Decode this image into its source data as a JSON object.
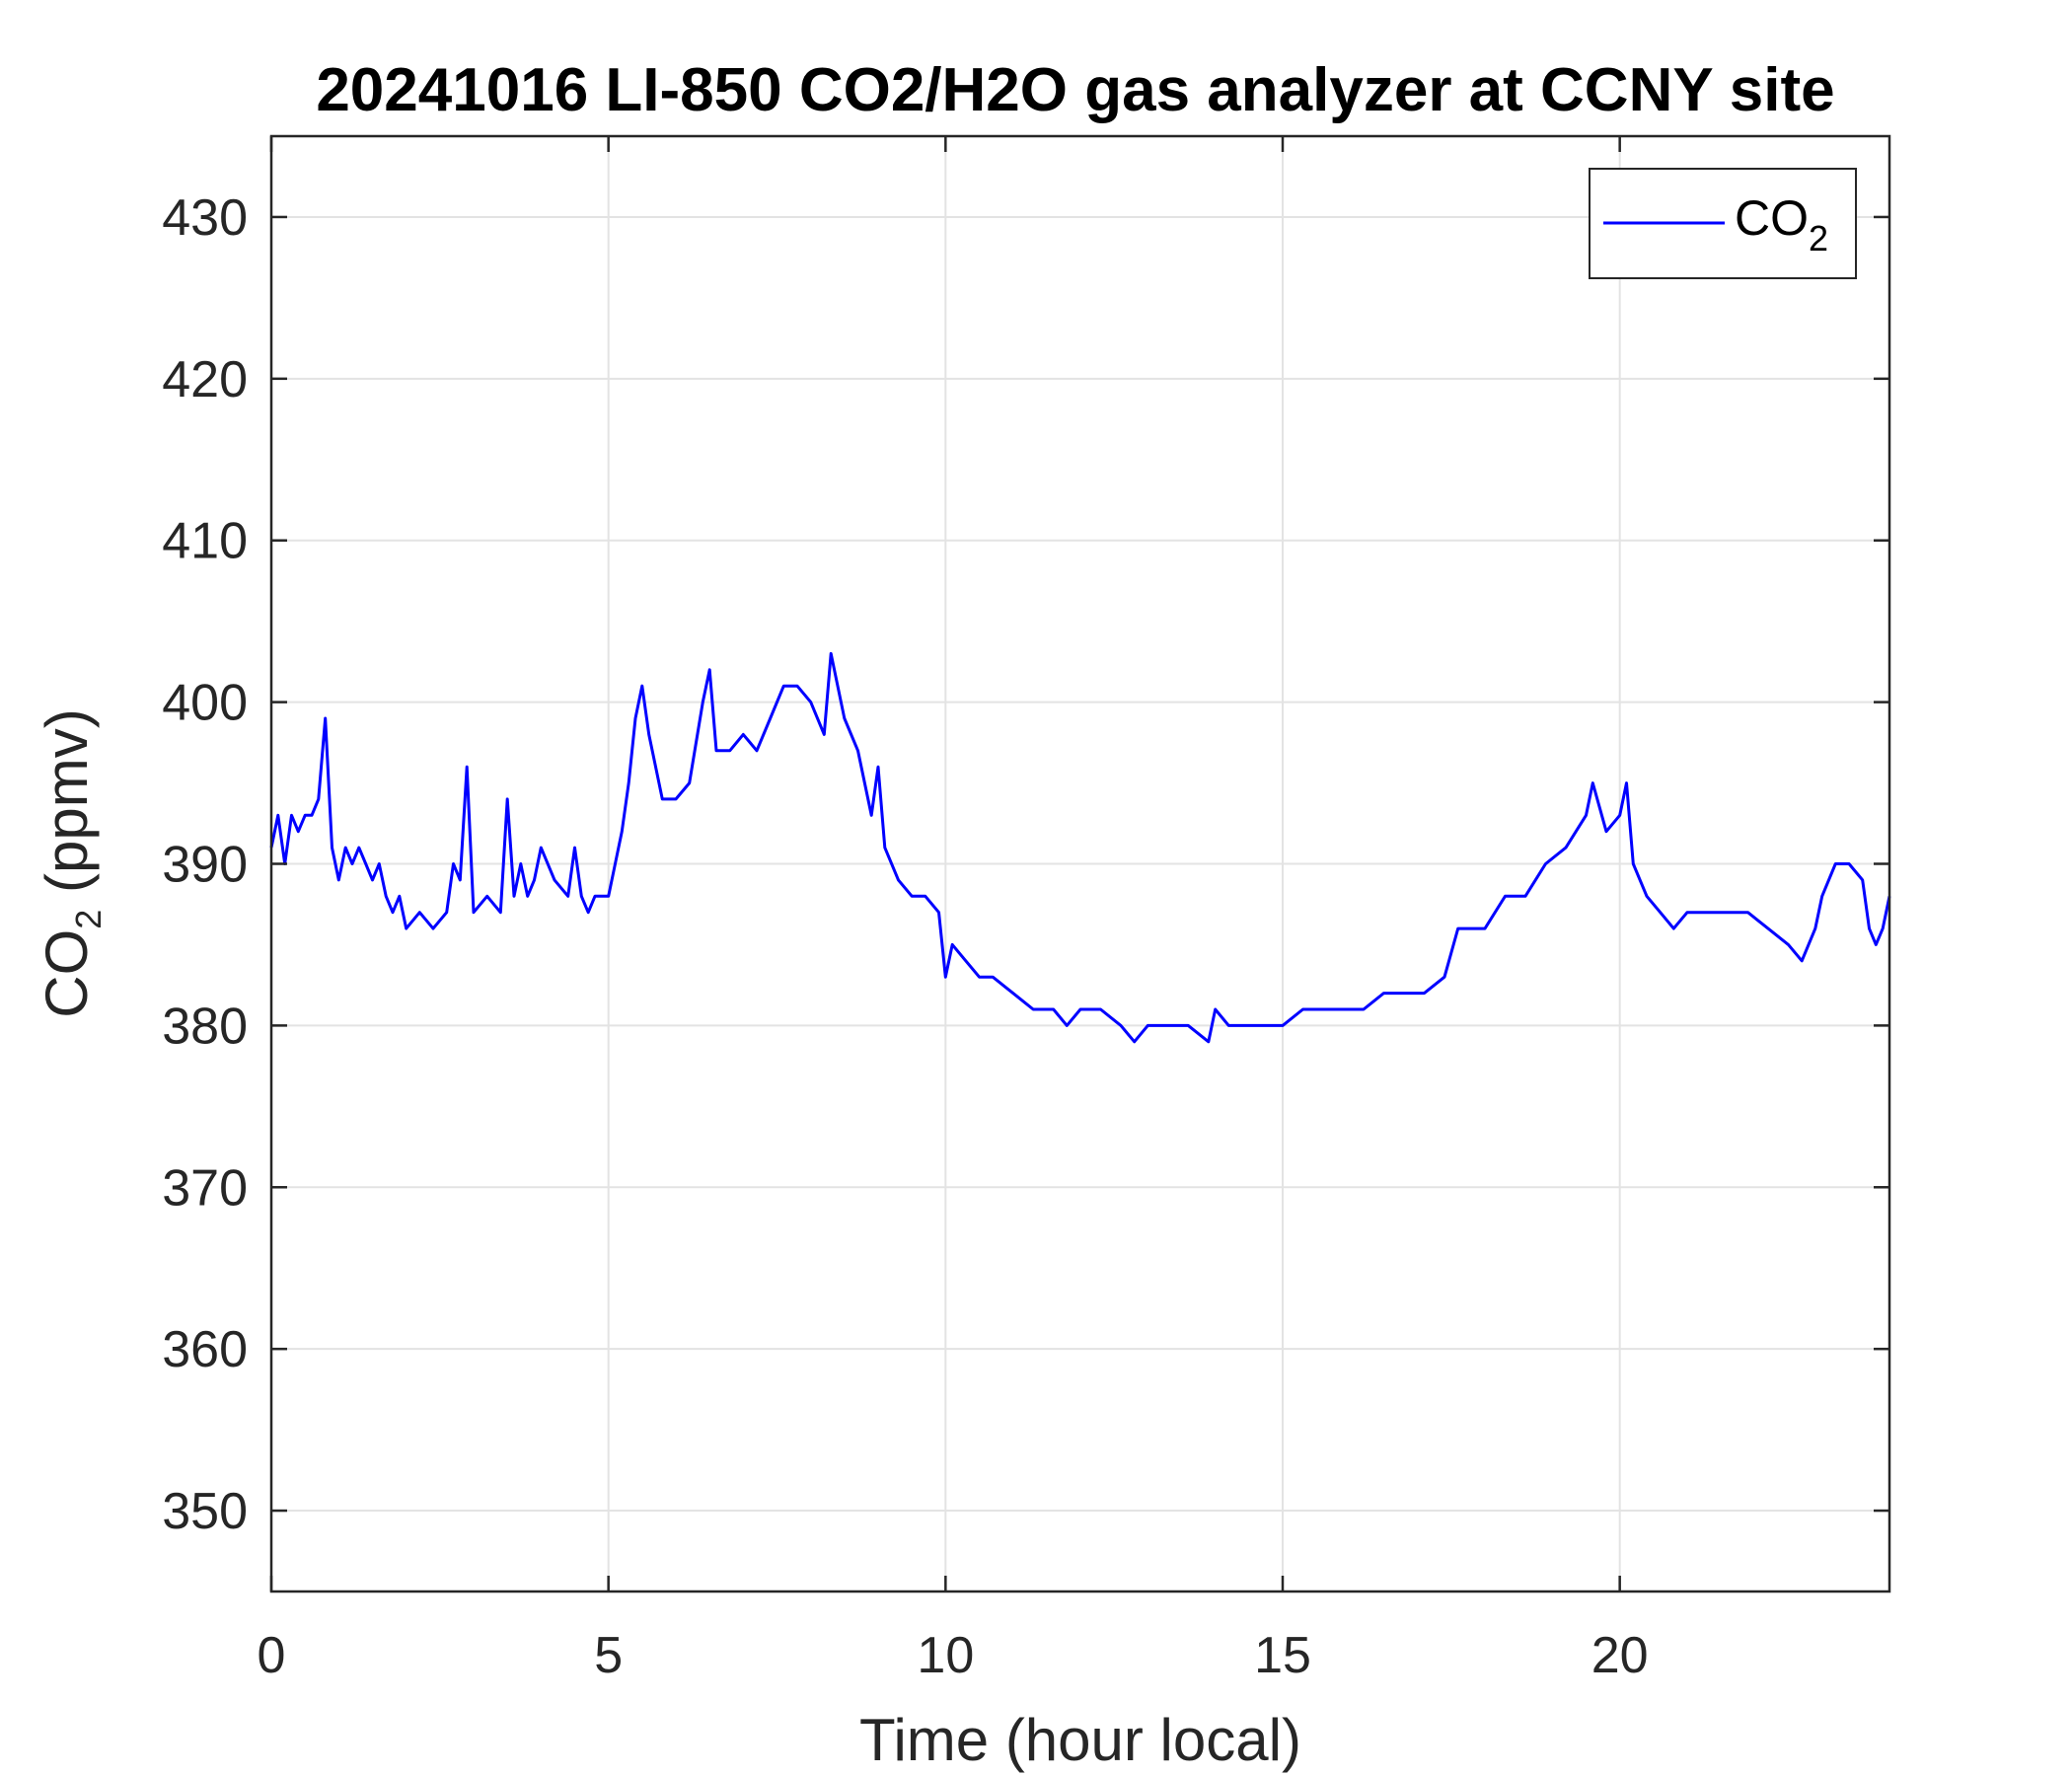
{
  "chart_data": {
    "type": "line",
    "title": "20241016 LI-850 CO2/H2O gas analyzer at CCNY site",
    "xlabel": "Time (hour local)",
    "ylabel": {
      "main": "CO",
      "sub": "2",
      "rest": " (ppmv)"
    },
    "xlim": [
      0,
      24
    ],
    "ylim": [
      345,
      435
    ],
    "xticks": [
      0,
      5,
      10,
      15,
      20
    ],
    "yticks": [
      350,
      360,
      370,
      380,
      390,
      400,
      410,
      420,
      430
    ],
    "grid": true,
    "legend_position": "top-right",
    "series": [
      {
        "name": {
          "main": "CO",
          "sub": "2"
        },
        "color": "#0000ff",
        "x": [
          0.0,
          0.1,
          0.2,
          0.3,
          0.4,
          0.5,
          0.6,
          0.7,
          0.8,
          0.9,
          1.0,
          1.1,
          1.2,
          1.3,
          1.4,
          1.5,
          1.6,
          1.7,
          1.8,
          1.9,
          2.0,
          2.2,
          2.4,
          2.6,
          2.7,
          2.8,
          2.9,
          3.0,
          3.2,
          3.4,
          3.5,
          3.6,
          3.7,
          3.8,
          3.9,
          4.0,
          4.2,
          4.4,
          4.5,
          4.6,
          4.7,
          4.8,
          5.0,
          5.1,
          5.2,
          5.3,
          5.4,
          5.5,
          5.6,
          5.8,
          6.0,
          6.2,
          6.4,
          6.5,
          6.6,
          6.8,
          7.0,
          7.2,
          7.4,
          7.6,
          7.8,
          8.0,
          8.2,
          8.3,
          8.5,
          8.7,
          8.9,
          9.0,
          9.1,
          9.3,
          9.5,
          9.7,
          9.9,
          10.0,
          10.1,
          10.3,
          10.5,
          10.7,
          11.0,
          11.3,
          11.6,
          11.8,
          12.0,
          12.3,
          12.6,
          12.8,
          13.0,
          13.3,
          13.6,
          13.9,
          14.0,
          14.2,
          14.5,
          14.8,
          15.0,
          15.3,
          15.6,
          15.9,
          16.2,
          16.5,
          16.8,
          17.1,
          17.4,
          17.6,
          17.8,
          18.0,
          18.3,
          18.6,
          18.9,
          19.2,
          19.5,
          19.6,
          19.8,
          20.0,
          20.1,
          20.2,
          20.4,
          20.6,
          20.8,
          21.0,
          21.3,
          21.6,
          21.9,
          22.2,
          22.5,
          22.7,
          22.9,
          23.0,
          23.2,
          23.4,
          23.6,
          23.7,
          23.8,
          23.9,
          24.0
        ],
        "y": [
          391,
          393,
          390,
          393,
          392,
          393,
          393,
          394,
          399,
          391,
          389,
          391,
          390,
          391,
          390,
          389,
          390,
          388,
          387,
          388,
          386,
          387,
          386,
          387,
          390,
          389,
          396,
          387,
          388,
          387,
          394,
          388,
          390,
          388,
          389,
          391,
          389,
          388,
          391,
          388,
          387,
          388,
          388,
          390,
          392,
          395,
          399,
          401,
          398,
          394,
          394,
          395,
          400,
          402,
          397,
          397,
          398,
          397,
          399,
          401,
          401,
          400,
          398,
          403,
          399,
          397,
          393,
          396,
          391,
          389,
          388,
          388,
          387,
          383,
          385,
          384,
          383,
          383,
          382,
          381,
          381,
          380,
          381,
          381,
          380,
          379,
          380,
          380,
          380,
          379,
          381,
          380,
          380,
          380,
          380,
          381,
          381,
          381,
          381,
          382,
          382,
          382,
          383,
          386,
          386,
          386,
          388,
          388,
          390,
          391,
          393,
          395,
          392,
          393,
          395,
          390,
          388,
          387,
          386,
          387,
          387,
          387,
          387,
          386,
          385,
          384,
          386,
          388,
          390,
          390,
          389,
          386,
          385,
          386,
          388
        ]
      }
    ]
  }
}
